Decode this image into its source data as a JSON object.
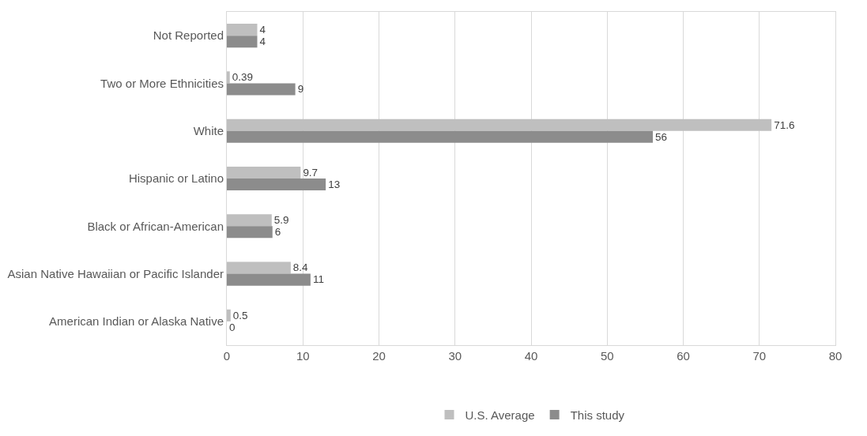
{
  "chart_data": {
    "type": "bar",
    "orientation": "horizontal",
    "categories": [
      "Not Reported",
      "Two or More Ethnicities",
      "White",
      "Hispanic or Latino",
      "Black or African-American",
      "Asian Native Hawaiian or Pacific Islander",
      "American Indian or Alaska Native"
    ],
    "series": [
      {
        "name": "U.S. Average",
        "color": "#bfbfbf",
        "values": [
          4,
          0.39,
          71.6,
          9.7,
          5.9,
          8.4,
          0.5
        ]
      },
      {
        "name": "This study",
        "color": "#8c8c8c",
        "values": [
          4,
          9,
          56,
          13,
          6,
          11,
          0
        ]
      }
    ],
    "xlim": [
      0,
      80
    ],
    "xticks": [
      0,
      10,
      20,
      30,
      40,
      50,
      60,
      70,
      80
    ],
    "grid": "x",
    "legend": "bottom",
    "data_labels": true
  }
}
